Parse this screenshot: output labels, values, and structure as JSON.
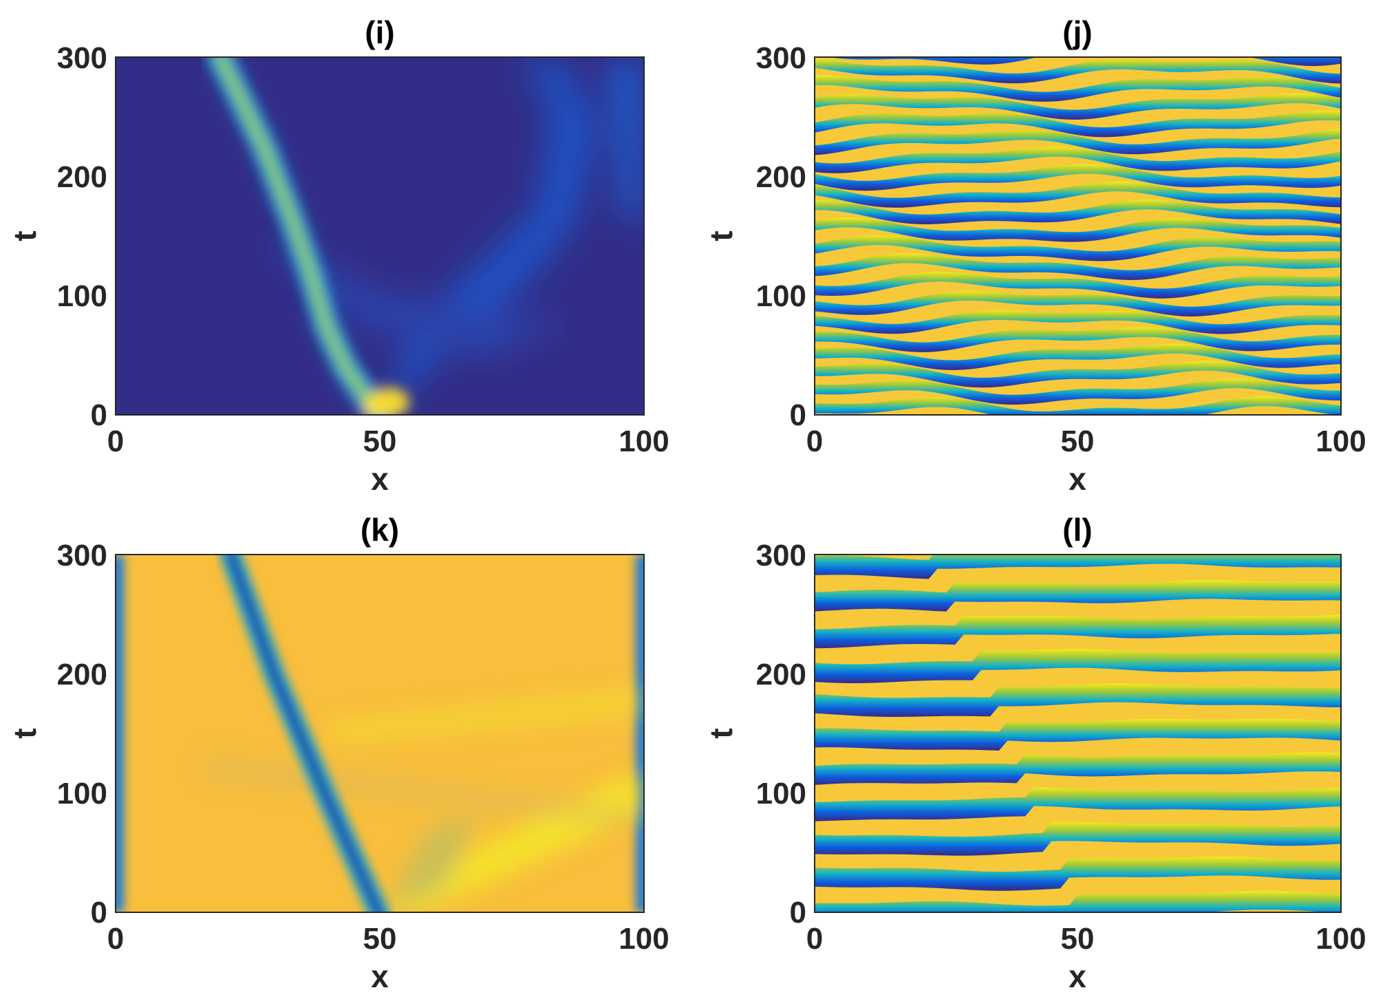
{
  "figure": {
    "layout": "2x2",
    "colormap": "parula",
    "colors": {
      "low": "#352a87",
      "mid": "#0fa2d8",
      "high": "#f9fb0e",
      "accent_yellow": "#f8c13b"
    }
  },
  "chart_data": [
    {
      "type": "heatmap",
      "title": "(i)",
      "xlabel": "x",
      "ylabel": "t",
      "xlim": [
        0,
        100
      ],
      "ylim": [
        0,
        300
      ],
      "xticks": [
        "0",
        "50",
        "100"
      ],
      "yticks": [
        "0",
        "100",
        "200",
        "300"
      ],
      "quantity": "amplitude",
      "features": [
        {
          "name": "main soliton track",
          "x_at_t": [
            [
              0,
              50
            ],
            [
              50,
              43
            ],
            [
              100,
              39
            ],
            [
              150,
              36
            ],
            [
              200,
              32
            ],
            [
              250,
              26
            ],
            [
              300,
              21
            ]
          ]
        },
        {
          "name": "secondary ridge",
          "x_at_t": [
            [
              0,
              55
            ],
            [
              100,
              70
            ],
            [
              200,
              80
            ],
            [
              300,
              80
            ]
          ]
        },
        {
          "name": "right edge ridge",
          "x_at_t": [
            [
              150,
              97
            ],
            [
              300,
              97
            ]
          ]
        }
      ]
    },
    {
      "type": "heatmap",
      "title": "(j)",
      "xlabel": "x",
      "ylabel": "t",
      "xlim": [
        0,
        100
      ],
      "ylim": [
        0,
        300
      ],
      "xticks": [
        "0",
        "50",
        "100"
      ],
      "yticks": [
        "0",
        "100",
        "200",
        "300"
      ],
      "quantity": "phase",
      "stripe_period_t": 15
    },
    {
      "type": "heatmap",
      "title": "(k)",
      "xlabel": "x",
      "ylabel": "t",
      "xlim": [
        0,
        100
      ],
      "ylim": [
        0,
        300
      ],
      "xticks": [
        "0",
        "50",
        "100"
      ],
      "yticks": [
        "0",
        "100",
        "200",
        "300"
      ],
      "quantity": "amplitude",
      "features": [
        {
          "name": "dark soliton track",
          "x_at_t": [
            [
              0,
              50
            ],
            [
              100,
              40
            ],
            [
              200,
              31
            ],
            [
              300,
              22
            ]
          ]
        },
        {
          "name": "reflected wave",
          "x_at_t": [
            [
              0,
              55
            ],
            [
              75,
              97
            ]
          ]
        }
      ]
    },
    {
      "type": "heatmap",
      "title": "(l)",
      "xlabel": "x",
      "ylabel": "t",
      "xlim": [
        0,
        100
      ],
      "ylim": [
        0,
        300
      ],
      "xticks": [
        "0",
        "50",
        "100"
      ],
      "yticks": [
        "0",
        "100",
        "200",
        "300"
      ],
      "quantity": "phase",
      "stripe_period_t": 29,
      "phase_jump_x_at_t": [
        [
          0,
          50
        ],
        [
          100,
          40
        ],
        [
          200,
          31
        ],
        [
          300,
          22
        ]
      ]
    }
  ]
}
